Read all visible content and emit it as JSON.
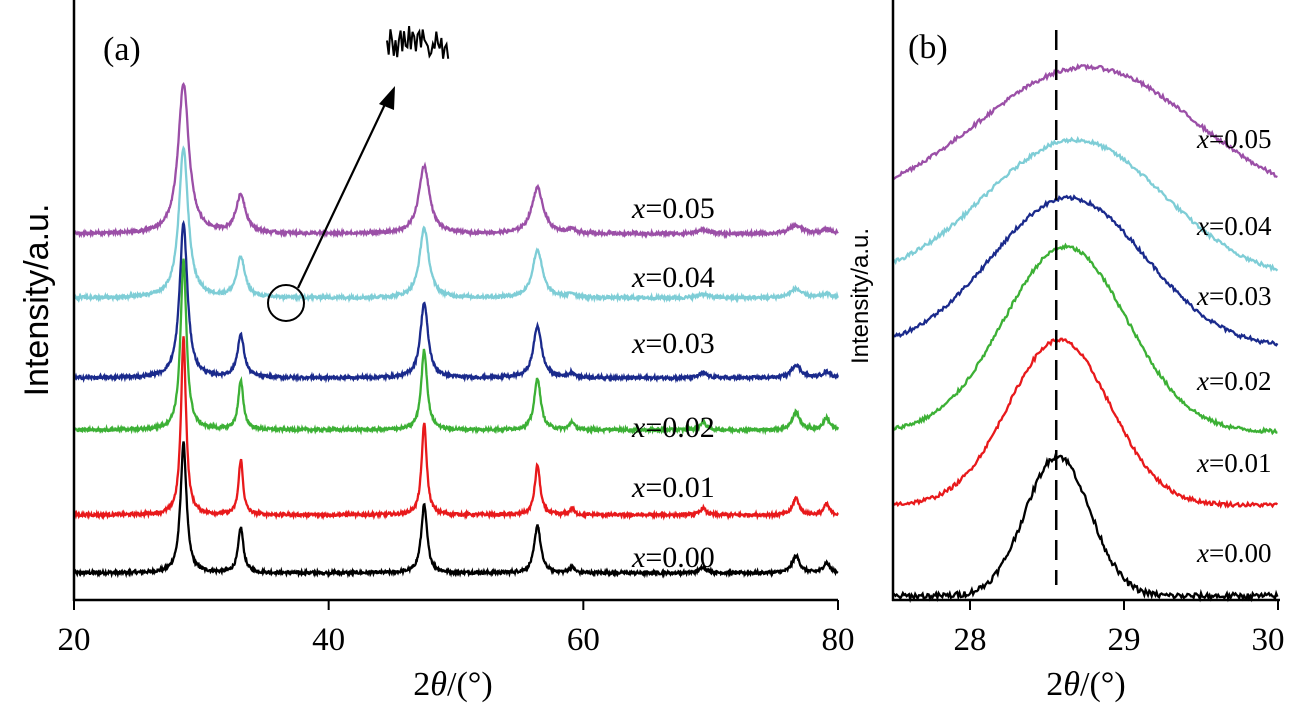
{
  "chart_data": [
    {
      "panel": "(a)",
      "type": "line",
      "xlabel_prefix": "2",
      "xlabel_symbol": "θ",
      "xlabel_suffix": "/(°)",
      "ylabel": "Intensity/a.u.",
      "xlim": [
        20,
        80
      ],
      "xticks": [
        "20",
        "40",
        "60",
        "80"
      ],
      "yticks": "none",
      "peaks": [
        28.6,
        33.1,
        47.5,
        56.4,
        59.1,
        69.4,
        76.7,
        79.1
      ],
      "series": [
        {
          "var": "x",
          "value": "=0.00",
          "color": "#000000",
          "peak_width_factor": 1.0
        },
        {
          "var": "x",
          "value": "=0.01",
          "color": "#e8191b",
          "peak_width_factor": 0.85
        },
        {
          "var": "x",
          "value": "=0.02",
          "color": "#3cb035",
          "peak_width_factor": 1.0
        },
        {
          "var": "x",
          "value": "=0.03",
          "color": "#1a2a8c",
          "peak_width_factor": 1.3
        },
        {
          "var": "x",
          "value": "=0.04",
          "color": "#7ecdd6",
          "peak_width_factor": 1.55
        },
        {
          "var": "x",
          "value": "=0.05",
          "color": "#9b4fa7",
          "peak_width_factor": 1.8
        }
      ],
      "annotation": "noise inset (circled region of x=0.04 pattern magnified)"
    },
    {
      "panel": "(b)",
      "type": "line",
      "xlabel_prefix": "2",
      "xlabel_symbol": "θ",
      "xlabel_suffix": "/(°)",
      "ylabel": "Intensity/a.u.",
      "xlim": [
        27.5,
        30
      ],
      "xticks": [
        "28",
        "29",
        "30"
      ],
      "reference_line_x": 28.56,
      "series": [
        {
          "var": "x",
          "value": "=0.00",
          "color": "#000000",
          "peak_center": 28.57,
          "peak_width": 0.21
        },
        {
          "var": "x",
          "value": "=0.01",
          "color": "#e8191b",
          "peak_center": 28.58,
          "peak_width": 0.33
        },
        {
          "var": "x",
          "value": "=0.02",
          "color": "#3cb035",
          "peak_center": 28.62,
          "peak_width": 0.4
        },
        {
          "var": "x",
          "value": "=0.03",
          "color": "#1a2a8c",
          "peak_center": 28.64,
          "peak_width": 0.5
        },
        {
          "var": "x",
          "value": "=0.04",
          "color": "#7ecdd6",
          "peak_center": 28.68,
          "peak_width": 0.58
        },
        {
          "var": "x",
          "value": "=0.05",
          "color": "#9b4fa7",
          "peak_center": 28.76,
          "peak_width": 0.7
        }
      ]
    }
  ]
}
